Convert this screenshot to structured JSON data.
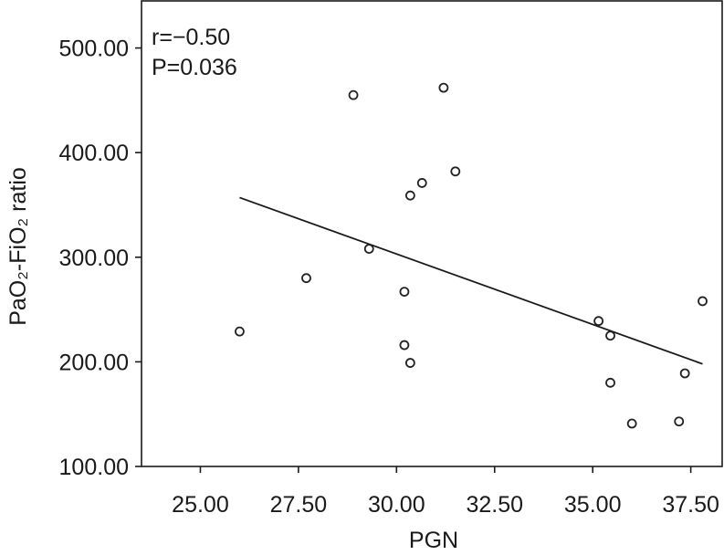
{
  "chart_data": {
    "type": "scatter",
    "xlabel": "PGN",
    "ylabel": "PaO₂-FiO₂ ratio",
    "xlim": [
      23.5,
      38.3
    ],
    "ylim": [
      100,
      545
    ],
    "x_ticks": [
      25.0,
      27.5,
      30.0,
      32.5,
      35.0,
      37.5
    ],
    "x_tick_labels": [
      "25.00",
      "27.50",
      "30.00",
      "32.50",
      "35.00",
      "37.50"
    ],
    "y_ticks": [
      100,
      200,
      300,
      400,
      500
    ],
    "y_tick_labels": [
      "100.00",
      "200.00",
      "300.00",
      "400.00",
      "500.00"
    ],
    "annotations": [
      "r=−0.50",
      "P=0.036"
    ],
    "grid": false,
    "points": [
      {
        "x": 26.0,
        "y": 229
      },
      {
        "x": 27.7,
        "y": 280
      },
      {
        "x": 28.9,
        "y": 455
      },
      {
        "x": 29.3,
        "y": 308
      },
      {
        "x": 30.2,
        "y": 267
      },
      {
        "x": 30.2,
        "y": 216
      },
      {
        "x": 30.35,
        "y": 199
      },
      {
        "x": 30.35,
        "y": 359
      },
      {
        "x": 30.65,
        "y": 371
      },
      {
        "x": 31.2,
        "y": 462
      },
      {
        "x": 31.5,
        "y": 382
      },
      {
        "x": 35.15,
        "y": 239
      },
      {
        "x": 35.45,
        "y": 225
      },
      {
        "x": 35.45,
        "y": 180
      },
      {
        "x": 36.0,
        "y": 141
      },
      {
        "x": 37.2,
        "y": 143
      },
      {
        "x": 37.35,
        "y": 189
      },
      {
        "x": 37.8,
        "y": 258
      }
    ],
    "fit_line": {
      "x": [
        26.0,
        37.8
      ],
      "y": [
        357,
        198
      ]
    }
  }
}
